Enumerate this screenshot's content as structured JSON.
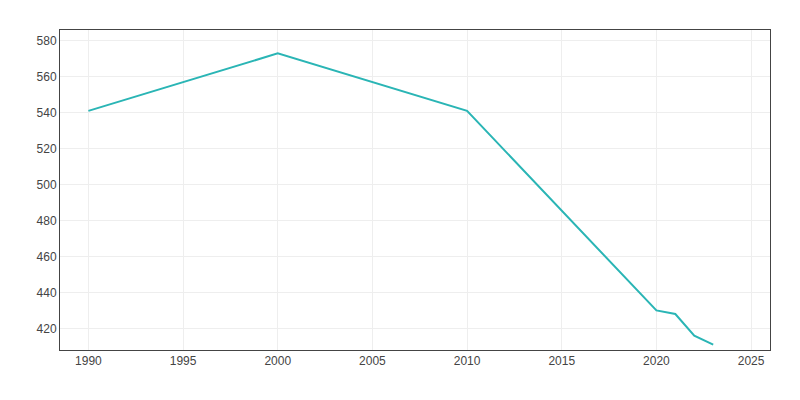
{
  "chart_data": {
    "type": "line",
    "x": [
      1990,
      2000,
      2010,
      2020,
      2021,
      2022,
      2023
    ],
    "values": [
      541,
      573,
      541,
      430,
      428,
      416,
      411
    ],
    "color": "#2ab5b5",
    "xlim": [
      1988.5,
      2026
    ],
    "ylim": [
      408,
      586
    ],
    "xticks": [
      1990,
      1995,
      2000,
      2005,
      2010,
      2015,
      2020,
      2025
    ],
    "yticks": [
      420,
      440,
      460,
      480,
      500,
      520,
      540,
      560,
      580
    ],
    "grid": true
  }
}
